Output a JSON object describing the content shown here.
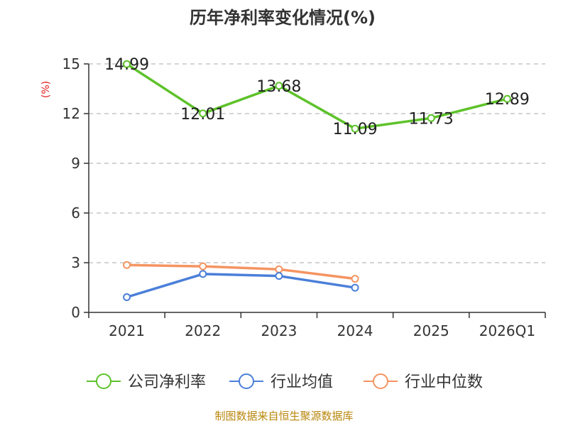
{
  "chart_data": {
    "type": "line",
    "title": "历年净利率变化情况(%)",
    "ylabel": "(%)",
    "xlabel": "",
    "categories": [
      "2021",
      "2022",
      "2023",
      "2024",
      "2025",
      "2026Q1"
    ],
    "ylim": [
      0,
      15
    ],
    "yticks": [
      "0",
      "3",
      "6",
      "9",
      "12",
      "15"
    ],
    "series": [
      {
        "name": "公司净利率",
        "color": "#5dc22a",
        "values": [
          14.99,
          12.01,
          13.68,
          11.09,
          11.73,
          12.89
        ],
        "labels": [
          "14.99",
          "12.01",
          "13.68",
          "11.09",
          "11.73",
          "12.89"
        ]
      },
      {
        "name": "行业均值",
        "color": "#4b7fd9",
        "values": [
          0.92,
          2.32,
          2.2,
          1.49,
          null,
          null
        ]
      },
      {
        "name": "行业中位数",
        "color": "#f59462",
        "values": [
          2.86,
          2.78,
          2.6,
          2.03,
          null,
          null
        ]
      }
    ],
    "grid": true,
    "legend": "bottom"
  },
  "source": "制图数据来自恒生聚源数据库"
}
